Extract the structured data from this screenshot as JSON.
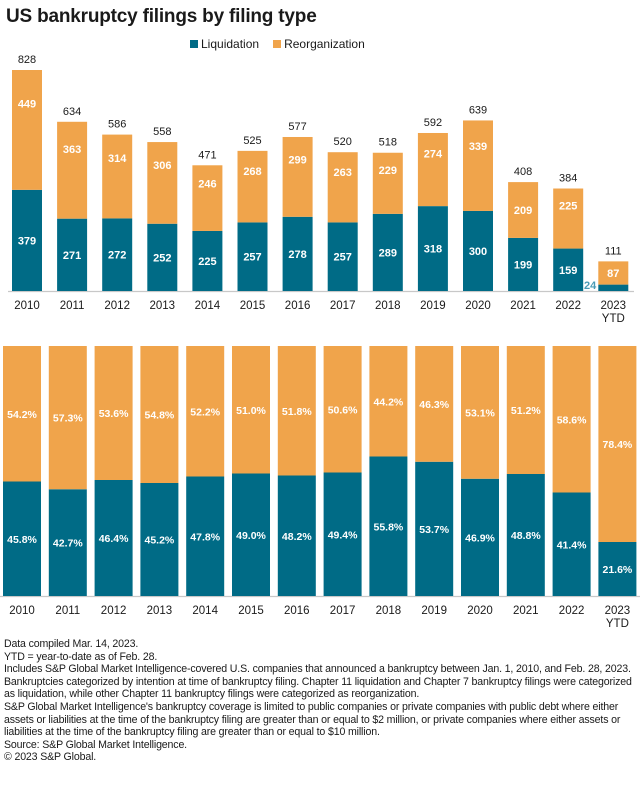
{
  "title": "US bankruptcy filings by filing type",
  "colors": {
    "liquidation": "#006b86",
    "reorganization": "#f0a44b",
    "axis": "#c8c8c8",
    "small_label": "#4a9bb5"
  },
  "legend": [
    {
      "label": "Liquidation",
      "color": "#006b86"
    },
    {
      "label": "Reorganization",
      "color": "#f0a44b"
    }
  ],
  "chart_data": [
    {
      "type": "bar",
      "stacked": true,
      "title": "US bankruptcy filings by filing type",
      "categories": [
        "2010",
        "2011",
        "2012",
        "2013",
        "2014",
        "2015",
        "2016",
        "2017",
        "2018",
        "2019",
        "2020",
        "2021",
        "2022",
        "2023 YTD"
      ],
      "category_lines": [
        [
          "2010"
        ],
        [
          "2011"
        ],
        [
          "2012"
        ],
        [
          "2013"
        ],
        [
          "2014"
        ],
        [
          "2015"
        ],
        [
          "2016"
        ],
        [
          "2017"
        ],
        [
          "2018"
        ],
        [
          "2019"
        ],
        [
          "2020"
        ],
        [
          "2021"
        ],
        [
          "2022"
        ],
        [
          "2023",
          "YTD"
        ]
      ],
      "series": [
        {
          "name": "Liquidation",
          "values": [
            379,
            271,
            272,
            252,
            225,
            257,
            278,
            257,
            289,
            318,
            300,
            199,
            159,
            24
          ]
        },
        {
          "name": "Reorganization",
          "values": [
            449,
            363,
            314,
            306,
            246,
            268,
            299,
            263,
            229,
            274,
            339,
            209,
            225,
            87
          ]
        }
      ],
      "totals": [
        828,
        634,
        586,
        558,
        471,
        525,
        577,
        520,
        518,
        592,
        639,
        408,
        384,
        111
      ],
      "xlabel": "",
      "ylabel": "",
      "ylim": [
        0,
        828
      ],
      "grid": false,
      "legend_position": "top-center"
    },
    {
      "type": "bar",
      "stacked": true,
      "percent": true,
      "categories": [
        "2010",
        "2011",
        "2012",
        "2013",
        "2014",
        "2015",
        "2016",
        "2017",
        "2018",
        "2019",
        "2020",
        "2021",
        "2022",
        "2023 YTD"
      ],
      "category_lines": [
        [
          "2010"
        ],
        [
          "2011"
        ],
        [
          "2012"
        ],
        [
          "2013"
        ],
        [
          "2014"
        ],
        [
          "2015"
        ],
        [
          "2016"
        ],
        [
          "2017"
        ],
        [
          "2018"
        ],
        [
          "2019"
        ],
        [
          "2020"
        ],
        [
          "2021"
        ],
        [
          "2022"
        ],
        [
          "2023",
          "YTD"
        ]
      ],
      "series": [
        {
          "name": "Liquidation",
          "values": [
            45.8,
            42.7,
            46.4,
            45.2,
            47.8,
            49.0,
            48.2,
            49.4,
            55.8,
            53.7,
            46.9,
            48.8,
            41.4,
            21.6
          ]
        },
        {
          "name": "Reorganization",
          "values": [
            54.2,
            57.3,
            53.6,
            54.8,
            52.2,
            51.0,
            51.8,
            50.6,
            44.2,
            46.3,
            53.1,
            51.2,
            58.6,
            78.4
          ]
        }
      ],
      "ylim": [
        0,
        100
      ],
      "grid": false
    }
  ],
  "notes": [
    "Data compiled Mar. 14, 2023.",
    "YTD = year-to-date as of Feb. 28.",
    "Includes S&P Global Market Intelligence-covered U.S. companies that announced a bankruptcy between Jan. 1, 2010, and Feb. 28, 2023.",
    "Bankruptcies categorized by intention at time of bankruptcy filing. Chapter 11 liquidation and Chapter 7 bankruptcy filings were categorized as liquidation, while other Chapter 11 bankruptcy filings were categorized as reorganization.",
    "S&P Global Market Intelligence's bankruptcy coverage is limited to public companies or private companies with public debt where either assets or liabilities at the time of the bankruptcy filing are greater than or equal to $2 million, or private companies where either assets or liabilities at the time of the bankruptcy filing are greater than or equal to $10 million.",
    "Source: S&P Global Market Intelligence.",
    "© 2023 S&P Global."
  ]
}
